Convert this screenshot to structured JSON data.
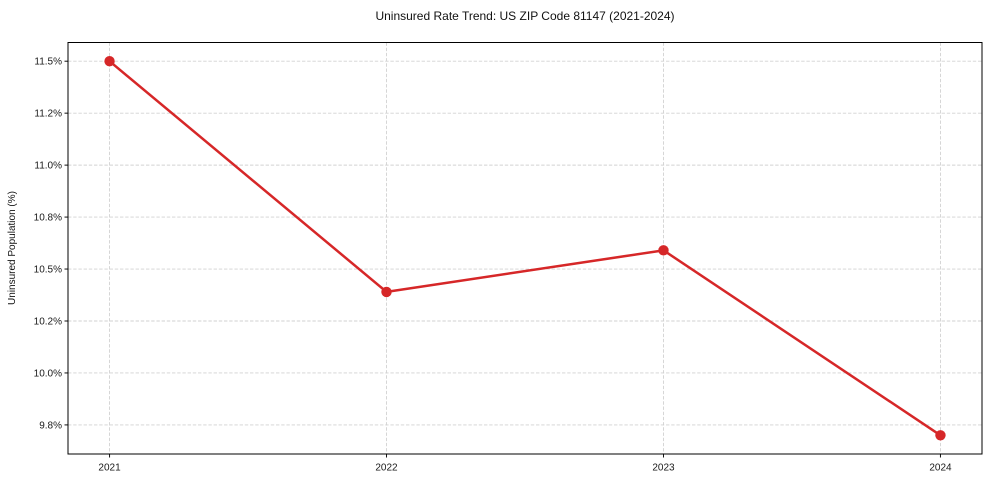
{
  "chart_data": {
    "type": "line",
    "title": "Uninsured Rate Trend: US ZIP Code 81147 (2021-2024)",
    "xlabel": "",
    "ylabel": "Uninsured Population (%)",
    "x": [
      2021,
      2022,
      2023,
      2024
    ],
    "x_tick_labels": [
      "2021",
      "2022",
      "2023",
      "2024"
    ],
    "series": [
      {
        "name": "Uninsured Population (%)",
        "values": [
          11.5,
          10.39,
          10.59,
          9.7
        ],
        "color": "#d62728",
        "marker": "circle",
        "marker_radius": 5.2,
        "line_width": 2.5
      }
    ],
    "y_ticks": [
      {
        "value": 11.5,
        "label": "11.5%"
      },
      {
        "value": 11.25,
        "label": "11.2%"
      },
      {
        "value": 11.0,
        "label": "11.0%"
      },
      {
        "value": 10.75,
        "label": "10.8%"
      },
      {
        "value": 10.5,
        "label": "10.5%"
      },
      {
        "value": 10.25,
        "label": "10.2%"
      },
      {
        "value": 10.0,
        "label": "10.0%"
      },
      {
        "value": 9.75,
        "label": "9.8%"
      }
    ],
    "xlim": [
      2020.85,
      2024.15
    ],
    "ylim": [
      9.61,
      11.59
    ],
    "grid": {
      "visible": true,
      "axis": "both",
      "style": "dashed",
      "color": "#d2d2d2"
    },
    "legend": {
      "visible": false
    }
  },
  "colors": {
    "line": "#d62728",
    "grid": "#d2d2d2",
    "spine": "#000000",
    "text": "#111111",
    "background": "#ffffff"
  }
}
